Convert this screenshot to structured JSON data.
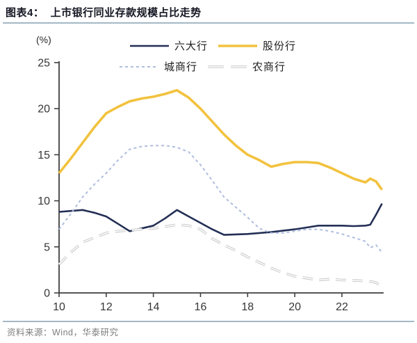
{
  "header": {
    "title": "图表4：  上市银行同业存款规模占比走势"
  },
  "footer": {
    "source": "资料来源：Wind，华泰研究"
  },
  "colors": {
    "rule": "#a3b8c6",
    "axis": "#3f3f3f",
    "tick_text": "#363636",
    "title_text": "#151522",
    "source_text": "#7d7d7d"
  },
  "chart_data": {
    "type": "line",
    "title": "上市银行同业存款规模占比走势",
    "percent_label": "(%)",
    "xlabel": "",
    "ylabel": "(%)",
    "xlim": [
      10,
      23.77
    ],
    "ylim": [
      0,
      25
    ],
    "xticks": [
      10,
      12,
      14,
      16,
      18,
      20,
      22
    ],
    "yticks": [
      0,
      5,
      10,
      15,
      20,
      25
    ],
    "grid": false,
    "legend_position": "top-center",
    "x": [
      10,
      10.5,
      11,
      11.5,
      12,
      12.5,
      13,
      13.5,
      14,
      14.5,
      15,
      15.5,
      16,
      16.5,
      17,
      17.5,
      18,
      18.5,
      19,
      19.5,
      20,
      20.5,
      21,
      21.5,
      22,
      22.5,
      23,
      23.2,
      23.45,
      23.7
    ],
    "series": [
      {
        "id": "big-six-banks",
        "name": "六大行",
        "color": "#232f55",
        "line": "solid",
        "width": 2.6,
        "values": [
          8.8,
          8.9,
          9.0,
          8.7,
          8.3,
          7.5,
          6.7,
          7.0,
          7.3,
          8.1,
          9.0,
          8.3,
          7.6,
          6.9,
          6.3,
          6.35,
          6.4,
          6.5,
          6.6,
          6.75,
          6.9,
          7.1,
          7.3,
          7.3,
          7.3,
          7.25,
          7.3,
          7.4,
          8.5,
          9.7
        ]
      },
      {
        "id": "joint-stock-banks",
        "name": "股份行",
        "color": "#f2c23e",
        "line": "solid",
        "width": 3.6,
        "values": [
          13.0,
          14.6,
          16.3,
          18.0,
          19.5,
          20.2,
          20.8,
          21.1,
          21.3,
          21.6,
          22.0,
          21.2,
          20.0,
          18.6,
          17.2,
          16.0,
          15.0,
          14.4,
          13.7,
          14.0,
          14.2,
          14.2,
          14.1,
          13.6,
          13.0,
          12.4,
          12.0,
          12.4,
          12.1,
          11.2
        ]
      },
      {
        "id": "city-commercial-banks",
        "name": "城商行",
        "color": "#aebdde",
        "line": "dash-short",
        "width": 2.0,
        "values": [
          6.9,
          8.6,
          10.4,
          11.8,
          13.0,
          14.4,
          15.6,
          15.9,
          16.0,
          16.0,
          15.8,
          15.3,
          13.9,
          12.2,
          10.4,
          9.3,
          8.2,
          7.0,
          6.5,
          6.5,
          6.7,
          6.9,
          6.9,
          6.7,
          6.4,
          6.0,
          5.6,
          4.9,
          5.2,
          4.4
        ]
      },
      {
        "id": "rural-commercial-banks",
        "name": "农商行",
        "color": "#c9c9c9",
        "line": "dash-long-hollow",
        "width": 3.6,
        "values": [
          3.1,
          4.4,
          5.5,
          6.0,
          6.5,
          6.7,
          6.8,
          6.9,
          7.0,
          7.2,
          7.4,
          7.3,
          6.9,
          5.9,
          5.2,
          4.6,
          3.9,
          3.3,
          2.7,
          2.2,
          1.8,
          1.6,
          1.4,
          1.5,
          1.4,
          1.35,
          1.3,
          1.25,
          1.1,
          0.7
        ]
      }
    ]
  }
}
